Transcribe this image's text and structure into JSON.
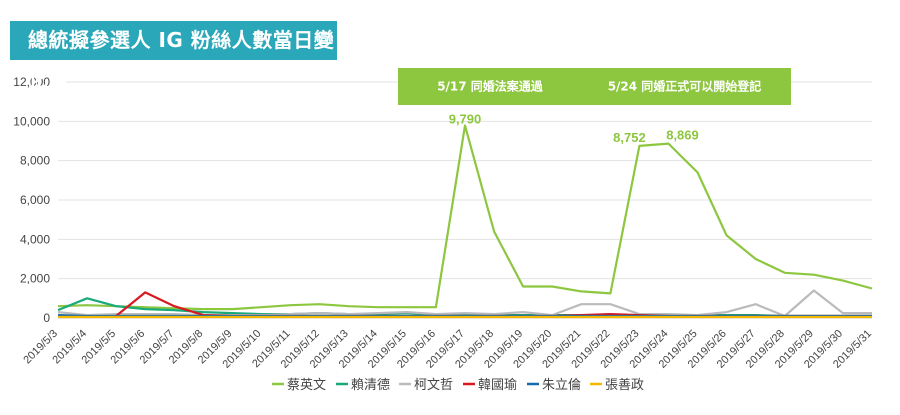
{
  "title": "總統擬參選人 IG 粉絲人數當日變化量",
  "chart_data": {
    "type": "line",
    "title": "總統擬參選人 IG 粉絲人數當日變化量",
    "categories": [
      "2019/5/3",
      "2019/5/4",
      "2019/5/5",
      "2019/5/6",
      "2019/5/7",
      "2019/5/8",
      "2019/5/9",
      "2019/5/10",
      "2019/5/11",
      "2019/5/12",
      "2019/5/13",
      "2019/5/14",
      "2019/5/15",
      "2019/5/16",
      "2019/5/17",
      "2019/5/18",
      "2019/5/19",
      "2019/5/20",
      "2019/5/21",
      "2019/5/22",
      "2019/5/23",
      "2019/5/24",
      "2019/5/25",
      "2019/5/26",
      "2019/5/27",
      "2019/5/28",
      "2019/5/29",
      "2019/5/30",
      "2019/5/31"
    ],
    "yticks": [
      "0",
      "2,000",
      "4,000",
      "6,000",
      "8,000",
      "10,000",
      "12,000"
    ],
    "ylim": [
      0,
      12000
    ],
    "grid": true,
    "legend_position": "bottom",
    "series": [
      {
        "name": "蔡英文",
        "color": "#8dc63f",
        "values": [
          600,
          650,
          600,
          550,
          500,
          450,
          450,
          550,
          650,
          700,
          600,
          550,
          550,
          550,
          9790,
          4400,
          1600,
          1600,
          1350,
          1250,
          8752,
          8869,
          7400,
          4200,
          3000,
          2300,
          2200,
          1900,
          1500
        ]
      },
      {
        "name": "賴清德",
        "color": "#1aaa7a",
        "values": [
          400,
          1000,
          600,
          450,
          400,
          300,
          250,
          200,
          200,
          250,
          200,
          200,
          250,
          150,
          150,
          150,
          150,
          150,
          150,
          150,
          150,
          150,
          150,
          150,
          150,
          100,
          100,
          100,
          100
        ]
      },
      {
        "name": "柯文哲",
        "color": "#bbbbbb",
        "values": [
          300,
          150,
          200,
          200,
          200,
          150,
          150,
          150,
          200,
          250,
          200,
          250,
          300,
          200,
          250,
          200,
          300,
          150,
          700,
          700,
          200,
          200,
          150,
          300,
          700,
          100,
          1400,
          250,
          250
        ]
      },
      {
        "name": "韓國瑜",
        "color": "#d71920",
        "values": [
          null,
          null,
          100,
          1300,
          600,
          150,
          100,
          100,
          100,
          100,
          100,
          100,
          100,
          100,
          100,
          100,
          100,
          100,
          150,
          200,
          150,
          100,
          100,
          100,
          100,
          100,
          100,
          100,
          100
        ]
      },
      {
        "name": "朱立倫",
        "color": "#1a6aa5",
        "values": [
          150,
          100,
          100,
          100,
          100,
          100,
          100,
          100,
          100,
          100,
          100,
          100,
          100,
          100,
          100,
          100,
          100,
          100,
          100,
          100,
          100,
          100,
          100,
          100,
          100,
          100,
          100,
          100,
          100
        ]
      },
      {
        "name": "張善政",
        "color": "#f5b800",
        "values": [
          50,
          50,
          50,
          50,
          50,
          50,
          50,
          50,
          50,
          50,
          50,
          50,
          50,
          50,
          50,
          50,
          50,
          50,
          50,
          50,
          50,
          50,
          50,
          50,
          50,
          50,
          50,
          50,
          50
        ]
      }
    ],
    "data_labels": [
      {
        "series": "蔡英文",
        "index": 14,
        "text": "9,790"
      },
      {
        "series": "蔡英文",
        "index": 20,
        "text": "8,752"
      },
      {
        "series": "蔡英文",
        "index": 21,
        "text": "8,869"
      }
    ],
    "annotations": [
      {
        "text": "5/17 同婚法案通過",
        "color": "#8dc63f"
      },
      {
        "text": "5/24 同婚正式可以開始登記",
        "color": "#8dc63f"
      }
    ]
  }
}
